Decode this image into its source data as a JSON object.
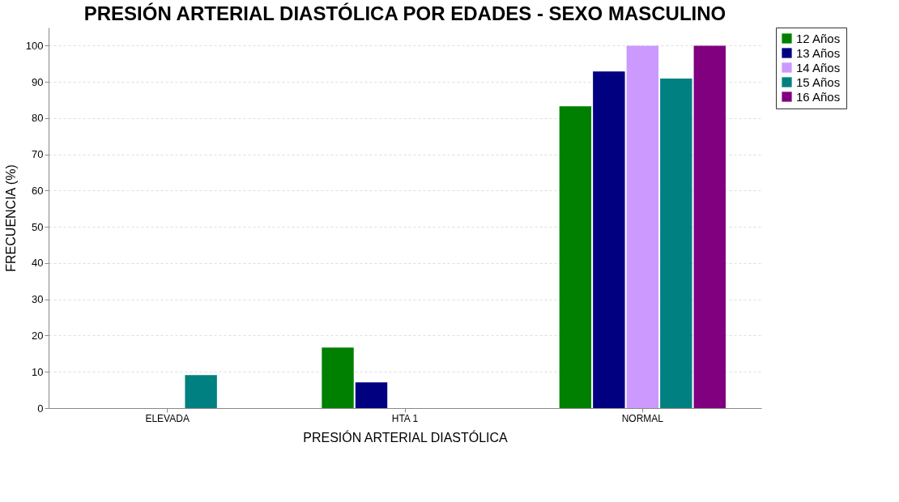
{
  "chart_data": {
    "type": "bar",
    "title": "PRESIÓN ARTERIAL DIASTÓLICA POR EDADES - SEXO MASCULINO",
    "xlabel": "PRESIÓN ARTERIAL DIASTÓLICA",
    "ylabel": "FRECUENCIA (%)",
    "categories": [
      "ELEVADA",
      "HTA 1",
      "NORMAL"
    ],
    "series": [
      {
        "name": "12 Años",
        "color": "#008000",
        "values": [
          0,
          16.7,
          83.3
        ]
      },
      {
        "name": "13 Años",
        "color": "#000080",
        "values": [
          0,
          7.1,
          92.9
        ]
      },
      {
        "name": "14 Años",
        "color": "#cc99ff",
        "values": [
          0,
          0,
          100
        ]
      },
      {
        "name": "15 Años",
        "color": "#008080",
        "values": [
          9.1,
          0,
          90.9
        ]
      },
      {
        "name": "16 Años",
        "color": "#800080",
        "values": [
          0,
          0,
          100
        ]
      }
    ],
    "ylim": [
      0,
      105
    ],
    "yticks": [
      0,
      10,
      20,
      30,
      40,
      50,
      60,
      70,
      80,
      90,
      100
    ],
    "grid": "y",
    "legend": "right"
  }
}
